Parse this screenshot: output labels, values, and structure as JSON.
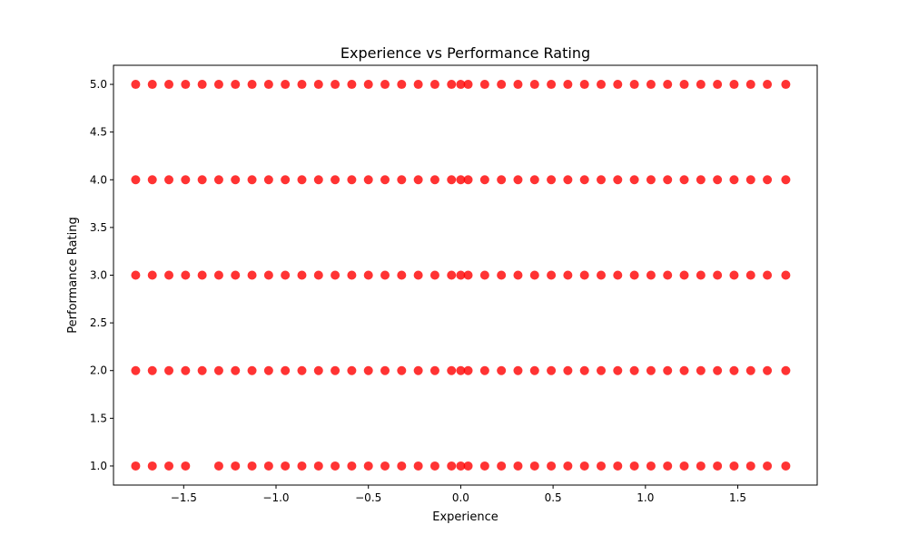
{
  "chart_data": {
    "type": "scatter",
    "title": "Experience vs Performance Rating",
    "xlabel": "Experience",
    "ylabel": "Performance Rating",
    "xlim": [
      -1.88,
      1.93
    ],
    "ylim": [
      0.8,
      5.2
    ],
    "xticks": [
      -1.5,
      -1.0,
      -0.5,
      0.0,
      0.5,
      1.0,
      1.5
    ],
    "xtick_labels": [
      "−1.5",
      "−1.0",
      "−0.5",
      "0.0",
      "0.5",
      "1.0",
      "1.5"
    ],
    "yticks": [
      1.0,
      1.5,
      2.0,
      2.5,
      3.0,
      3.5,
      4.0,
      4.5,
      5.0
    ],
    "ytick_labels": [
      "1.0",
      "1.5",
      "2.0",
      "2.5",
      "3.0",
      "3.5",
      "4.0",
      "4.5",
      "5.0"
    ],
    "grid": false,
    "marker_color": "#ff0000",
    "marker_alpha": 0.8,
    "series": [
      {
        "points": [
          {
            "x": -1.76,
            "y": 5
          },
          {
            "x": -1.67,
            "y": 5
          },
          {
            "x": -1.58,
            "y": 5
          },
          {
            "x": -1.49,
            "y": 5
          },
          {
            "x": -1.4,
            "y": 5
          },
          {
            "x": -1.31,
            "y": 5
          },
          {
            "x": -1.22,
            "y": 5
          },
          {
            "x": -1.13,
            "y": 5
          },
          {
            "x": -1.04,
            "y": 5
          },
          {
            "x": -0.95,
            "y": 5
          },
          {
            "x": -0.86,
            "y": 5
          },
          {
            "x": -0.77,
            "y": 5
          },
          {
            "x": -0.68,
            "y": 5
          },
          {
            "x": -0.59,
            "y": 5
          },
          {
            "x": -0.5,
            "y": 5
          },
          {
            "x": -0.41,
            "y": 5
          },
          {
            "x": -0.32,
            "y": 5
          },
          {
            "x": -0.23,
            "y": 5
          },
          {
            "x": -0.14,
            "y": 5
          },
          {
            "x": -0.05,
            "y": 5
          },
          {
            "x": 0.0,
            "y": 5
          },
          {
            "x": 0.04,
            "y": 5
          },
          {
            "x": 0.13,
            "y": 5
          },
          {
            "x": 0.22,
            "y": 5
          },
          {
            "x": 0.31,
            "y": 5
          },
          {
            "x": 0.4,
            "y": 5
          },
          {
            "x": 0.49,
            "y": 5
          },
          {
            "x": 0.58,
            "y": 5
          },
          {
            "x": 0.67,
            "y": 5
          },
          {
            "x": 0.76,
            "y": 5
          },
          {
            "x": 0.85,
            "y": 5
          },
          {
            "x": 0.94,
            "y": 5
          },
          {
            "x": 1.03,
            "y": 5
          },
          {
            "x": 1.12,
            "y": 5
          },
          {
            "x": 1.21,
            "y": 5
          },
          {
            "x": 1.3,
            "y": 5
          },
          {
            "x": 1.39,
            "y": 5
          },
          {
            "x": 1.48,
            "y": 5
          },
          {
            "x": 1.57,
            "y": 5
          },
          {
            "x": 1.66,
            "y": 5
          },
          {
            "x": 1.76,
            "y": 5
          },
          {
            "x": -1.76,
            "y": 4
          },
          {
            "x": -1.67,
            "y": 4
          },
          {
            "x": -1.58,
            "y": 4
          },
          {
            "x": -1.49,
            "y": 4
          },
          {
            "x": -1.4,
            "y": 4
          },
          {
            "x": -1.31,
            "y": 4
          },
          {
            "x": -1.22,
            "y": 4
          },
          {
            "x": -1.13,
            "y": 4
          },
          {
            "x": -1.04,
            "y": 4
          },
          {
            "x": -0.95,
            "y": 4
          },
          {
            "x": -0.86,
            "y": 4
          },
          {
            "x": -0.77,
            "y": 4
          },
          {
            "x": -0.68,
            "y": 4
          },
          {
            "x": -0.59,
            "y": 4
          },
          {
            "x": -0.5,
            "y": 4
          },
          {
            "x": -0.41,
            "y": 4
          },
          {
            "x": -0.32,
            "y": 4
          },
          {
            "x": -0.23,
            "y": 4
          },
          {
            "x": -0.14,
            "y": 4
          },
          {
            "x": -0.05,
            "y": 4
          },
          {
            "x": 0.0,
            "y": 4
          },
          {
            "x": 0.04,
            "y": 4
          },
          {
            "x": 0.13,
            "y": 4
          },
          {
            "x": 0.22,
            "y": 4
          },
          {
            "x": 0.31,
            "y": 4
          },
          {
            "x": 0.4,
            "y": 4
          },
          {
            "x": 0.49,
            "y": 4
          },
          {
            "x": 0.58,
            "y": 4
          },
          {
            "x": 0.67,
            "y": 4
          },
          {
            "x": 0.76,
            "y": 4
          },
          {
            "x": 0.85,
            "y": 4
          },
          {
            "x": 0.94,
            "y": 4
          },
          {
            "x": 1.03,
            "y": 4
          },
          {
            "x": 1.12,
            "y": 4
          },
          {
            "x": 1.21,
            "y": 4
          },
          {
            "x": 1.3,
            "y": 4
          },
          {
            "x": 1.39,
            "y": 4
          },
          {
            "x": 1.48,
            "y": 4
          },
          {
            "x": 1.57,
            "y": 4
          },
          {
            "x": 1.66,
            "y": 4
          },
          {
            "x": 1.76,
            "y": 4
          },
          {
            "x": -1.76,
            "y": 3
          },
          {
            "x": -1.67,
            "y": 3
          },
          {
            "x": -1.58,
            "y": 3
          },
          {
            "x": -1.49,
            "y": 3
          },
          {
            "x": -1.4,
            "y": 3
          },
          {
            "x": -1.31,
            "y": 3
          },
          {
            "x": -1.22,
            "y": 3
          },
          {
            "x": -1.13,
            "y": 3
          },
          {
            "x": -1.04,
            "y": 3
          },
          {
            "x": -0.95,
            "y": 3
          },
          {
            "x": -0.86,
            "y": 3
          },
          {
            "x": -0.77,
            "y": 3
          },
          {
            "x": -0.68,
            "y": 3
          },
          {
            "x": -0.59,
            "y": 3
          },
          {
            "x": -0.5,
            "y": 3
          },
          {
            "x": -0.41,
            "y": 3
          },
          {
            "x": -0.32,
            "y": 3
          },
          {
            "x": -0.23,
            "y": 3
          },
          {
            "x": -0.14,
            "y": 3
          },
          {
            "x": -0.05,
            "y": 3
          },
          {
            "x": 0.0,
            "y": 3
          },
          {
            "x": 0.04,
            "y": 3
          },
          {
            "x": 0.13,
            "y": 3
          },
          {
            "x": 0.22,
            "y": 3
          },
          {
            "x": 0.31,
            "y": 3
          },
          {
            "x": 0.4,
            "y": 3
          },
          {
            "x": 0.49,
            "y": 3
          },
          {
            "x": 0.58,
            "y": 3
          },
          {
            "x": 0.67,
            "y": 3
          },
          {
            "x": 0.76,
            "y": 3
          },
          {
            "x": 0.85,
            "y": 3
          },
          {
            "x": 0.94,
            "y": 3
          },
          {
            "x": 1.03,
            "y": 3
          },
          {
            "x": 1.12,
            "y": 3
          },
          {
            "x": 1.21,
            "y": 3
          },
          {
            "x": 1.3,
            "y": 3
          },
          {
            "x": 1.39,
            "y": 3
          },
          {
            "x": 1.48,
            "y": 3
          },
          {
            "x": 1.57,
            "y": 3
          },
          {
            "x": 1.66,
            "y": 3
          },
          {
            "x": 1.76,
            "y": 3
          },
          {
            "x": -1.76,
            "y": 2
          },
          {
            "x": -1.67,
            "y": 2
          },
          {
            "x": -1.58,
            "y": 2
          },
          {
            "x": -1.49,
            "y": 2
          },
          {
            "x": -1.4,
            "y": 2
          },
          {
            "x": -1.31,
            "y": 2
          },
          {
            "x": -1.22,
            "y": 2
          },
          {
            "x": -1.13,
            "y": 2
          },
          {
            "x": -1.04,
            "y": 2
          },
          {
            "x": -0.95,
            "y": 2
          },
          {
            "x": -0.86,
            "y": 2
          },
          {
            "x": -0.77,
            "y": 2
          },
          {
            "x": -0.68,
            "y": 2
          },
          {
            "x": -0.59,
            "y": 2
          },
          {
            "x": -0.5,
            "y": 2
          },
          {
            "x": -0.41,
            "y": 2
          },
          {
            "x": -0.32,
            "y": 2
          },
          {
            "x": -0.23,
            "y": 2
          },
          {
            "x": -0.14,
            "y": 2
          },
          {
            "x": -0.05,
            "y": 2
          },
          {
            "x": 0.0,
            "y": 2
          },
          {
            "x": 0.04,
            "y": 2
          },
          {
            "x": 0.13,
            "y": 2
          },
          {
            "x": 0.22,
            "y": 2
          },
          {
            "x": 0.31,
            "y": 2
          },
          {
            "x": 0.4,
            "y": 2
          },
          {
            "x": 0.49,
            "y": 2
          },
          {
            "x": 0.58,
            "y": 2
          },
          {
            "x": 0.67,
            "y": 2
          },
          {
            "x": 0.76,
            "y": 2
          },
          {
            "x": 0.85,
            "y": 2
          },
          {
            "x": 0.94,
            "y": 2
          },
          {
            "x": 1.03,
            "y": 2
          },
          {
            "x": 1.12,
            "y": 2
          },
          {
            "x": 1.21,
            "y": 2
          },
          {
            "x": 1.3,
            "y": 2
          },
          {
            "x": 1.39,
            "y": 2
          },
          {
            "x": 1.48,
            "y": 2
          },
          {
            "x": 1.57,
            "y": 2
          },
          {
            "x": 1.66,
            "y": 2
          },
          {
            "x": 1.76,
            "y": 2
          },
          {
            "x": -1.76,
            "y": 1
          },
          {
            "x": -1.67,
            "y": 1
          },
          {
            "x": -1.58,
            "y": 1
          },
          {
            "x": -1.49,
            "y": 1
          },
          {
            "x": -1.31,
            "y": 1
          },
          {
            "x": -1.22,
            "y": 1
          },
          {
            "x": -1.13,
            "y": 1
          },
          {
            "x": -1.04,
            "y": 1
          },
          {
            "x": -0.95,
            "y": 1
          },
          {
            "x": -0.86,
            "y": 1
          },
          {
            "x": -0.77,
            "y": 1
          },
          {
            "x": -0.68,
            "y": 1
          },
          {
            "x": -0.59,
            "y": 1
          },
          {
            "x": -0.5,
            "y": 1
          },
          {
            "x": -0.41,
            "y": 1
          },
          {
            "x": -0.32,
            "y": 1
          },
          {
            "x": -0.23,
            "y": 1
          },
          {
            "x": -0.14,
            "y": 1
          },
          {
            "x": -0.05,
            "y": 1
          },
          {
            "x": 0.0,
            "y": 1
          },
          {
            "x": 0.04,
            "y": 1
          },
          {
            "x": 0.13,
            "y": 1
          },
          {
            "x": 0.22,
            "y": 1
          },
          {
            "x": 0.31,
            "y": 1
          },
          {
            "x": 0.4,
            "y": 1
          },
          {
            "x": 0.49,
            "y": 1
          },
          {
            "x": 0.58,
            "y": 1
          },
          {
            "x": 0.67,
            "y": 1
          },
          {
            "x": 0.76,
            "y": 1
          },
          {
            "x": 0.85,
            "y": 1
          },
          {
            "x": 0.94,
            "y": 1
          },
          {
            "x": 1.03,
            "y": 1
          },
          {
            "x": 1.12,
            "y": 1
          },
          {
            "x": 1.21,
            "y": 1
          },
          {
            "x": 1.3,
            "y": 1
          },
          {
            "x": 1.39,
            "y": 1
          },
          {
            "x": 1.48,
            "y": 1
          },
          {
            "x": 1.57,
            "y": 1
          },
          {
            "x": 1.66,
            "y": 1
          },
          {
            "x": 1.76,
            "y": 1
          }
        ]
      }
    ]
  }
}
